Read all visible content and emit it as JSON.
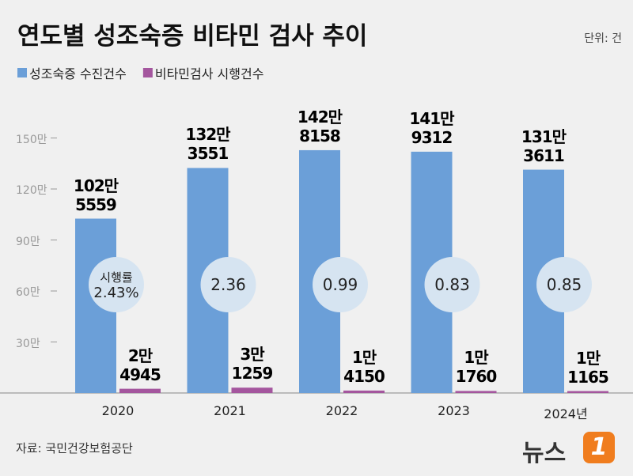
{
  "chart_data": {
    "type": "bar",
    "title": "연도별 성조숙증 비타민 검사 추이",
    "unit": "단위: 건",
    "source": "자료: 국민건강보험공단",
    "logo": "뉴스",
    "logo_mark": "1",
    "categories": [
      "2020",
      "2021",
      "2022",
      "2023",
      "2024년"
    ],
    "series": [
      {
        "name": "성조숙증 수진건수",
        "color": "#6b9fd8",
        "values": [
          1025559,
          1323551,
          1428158,
          1419312,
          1313611
        ],
        "value_labels": [
          "102만\n5559",
          "132만\n3551",
          "142만\n8158",
          "141만\n9312",
          "131만\n3611"
        ]
      },
      {
        "name": "비타민검사 시행건수",
        "color": "#a4569e",
        "values": [
          24945,
          31259,
          14150,
          11760,
          11165
        ],
        "value_labels": [
          "2만\n4945",
          "3만\n1259",
          "1만\n4150",
          "1만\n1760",
          "1만\n1165"
        ]
      }
    ],
    "rates": {
      "name": "시행률",
      "color": "#d6e4f1",
      "values": [
        2.43,
        2.36,
        0.99,
        0.83,
        0.85
      ],
      "value_labels": [
        "2.43%",
        "2.36",
        "0.99",
        "0.83",
        "0.85"
      ]
    },
    "ylim": [
      0,
      1800000
    ],
    "yticks": [
      {
        "value": 300000,
        "label": "30만"
      },
      {
        "value": 600000,
        "label": "60만"
      },
      {
        "value": 900000,
        "label": "90만"
      },
      {
        "value": 1200000,
        "label": "120만"
      },
      {
        "value": 1500000,
        "label": "150만"
      }
    ]
  }
}
